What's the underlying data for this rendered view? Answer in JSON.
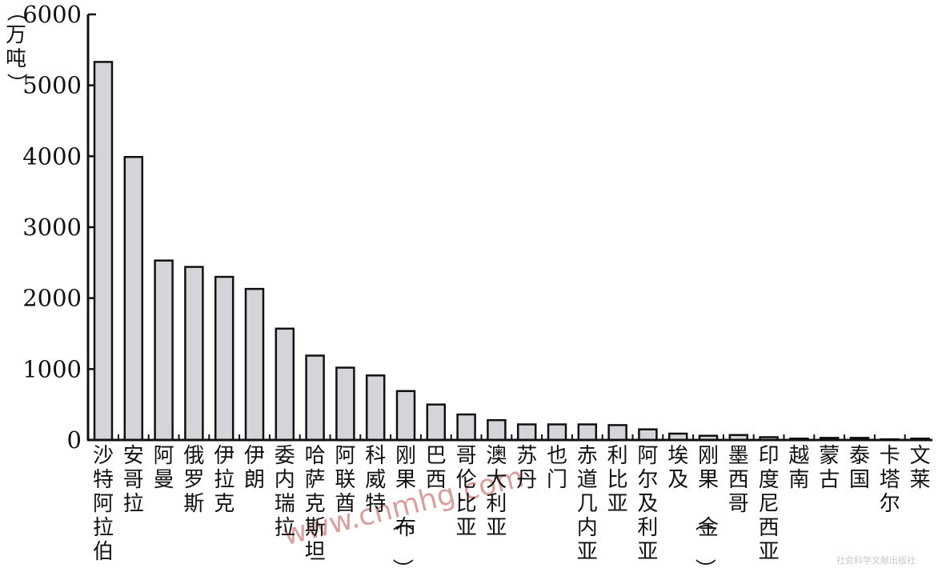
{
  "chart_data": {
    "type": "bar",
    "ylabel": "（万吨）",
    "ylim": [
      0,
      6000
    ],
    "yticks": [
      "0",
      "1000",
      "2000",
      "3000",
      "4000",
      "5000",
      "6000"
    ],
    "categories": [
      "沙特阿拉伯",
      "安哥拉",
      "阿曼",
      "俄罗斯",
      "伊拉克",
      "伊朗",
      "委内瑞拉",
      "哈萨克斯坦",
      "阿联酋",
      "科威特",
      "刚果（布）",
      "巴西",
      "哥伦比亚",
      "澳大利亚",
      "苏丹",
      "也门",
      "赤道几内亚",
      "利比亚",
      "阿尔及利亚",
      "埃及",
      "刚果（金）",
      "墨西哥",
      "印度尼西亚",
      "越南",
      "蒙古",
      "泰国",
      "卡塔尔",
      "文莱"
    ],
    "values": [
      5330,
      3990,
      2530,
      2440,
      2300,
      2130,
      1570,
      1190,
      1020,
      910,
      690,
      500,
      360,
      280,
      220,
      220,
      220,
      210,
      150,
      90,
      60,
      70,
      40,
      20,
      30,
      30,
      10,
      20
    ],
    "bar_color": "#d3d5d8",
    "bar_stroke": "#111111",
    "grid": false
  },
  "watermark": {
    "text": "www.cnmhg.com",
    "publisher": "社会科学文献出版社"
  }
}
